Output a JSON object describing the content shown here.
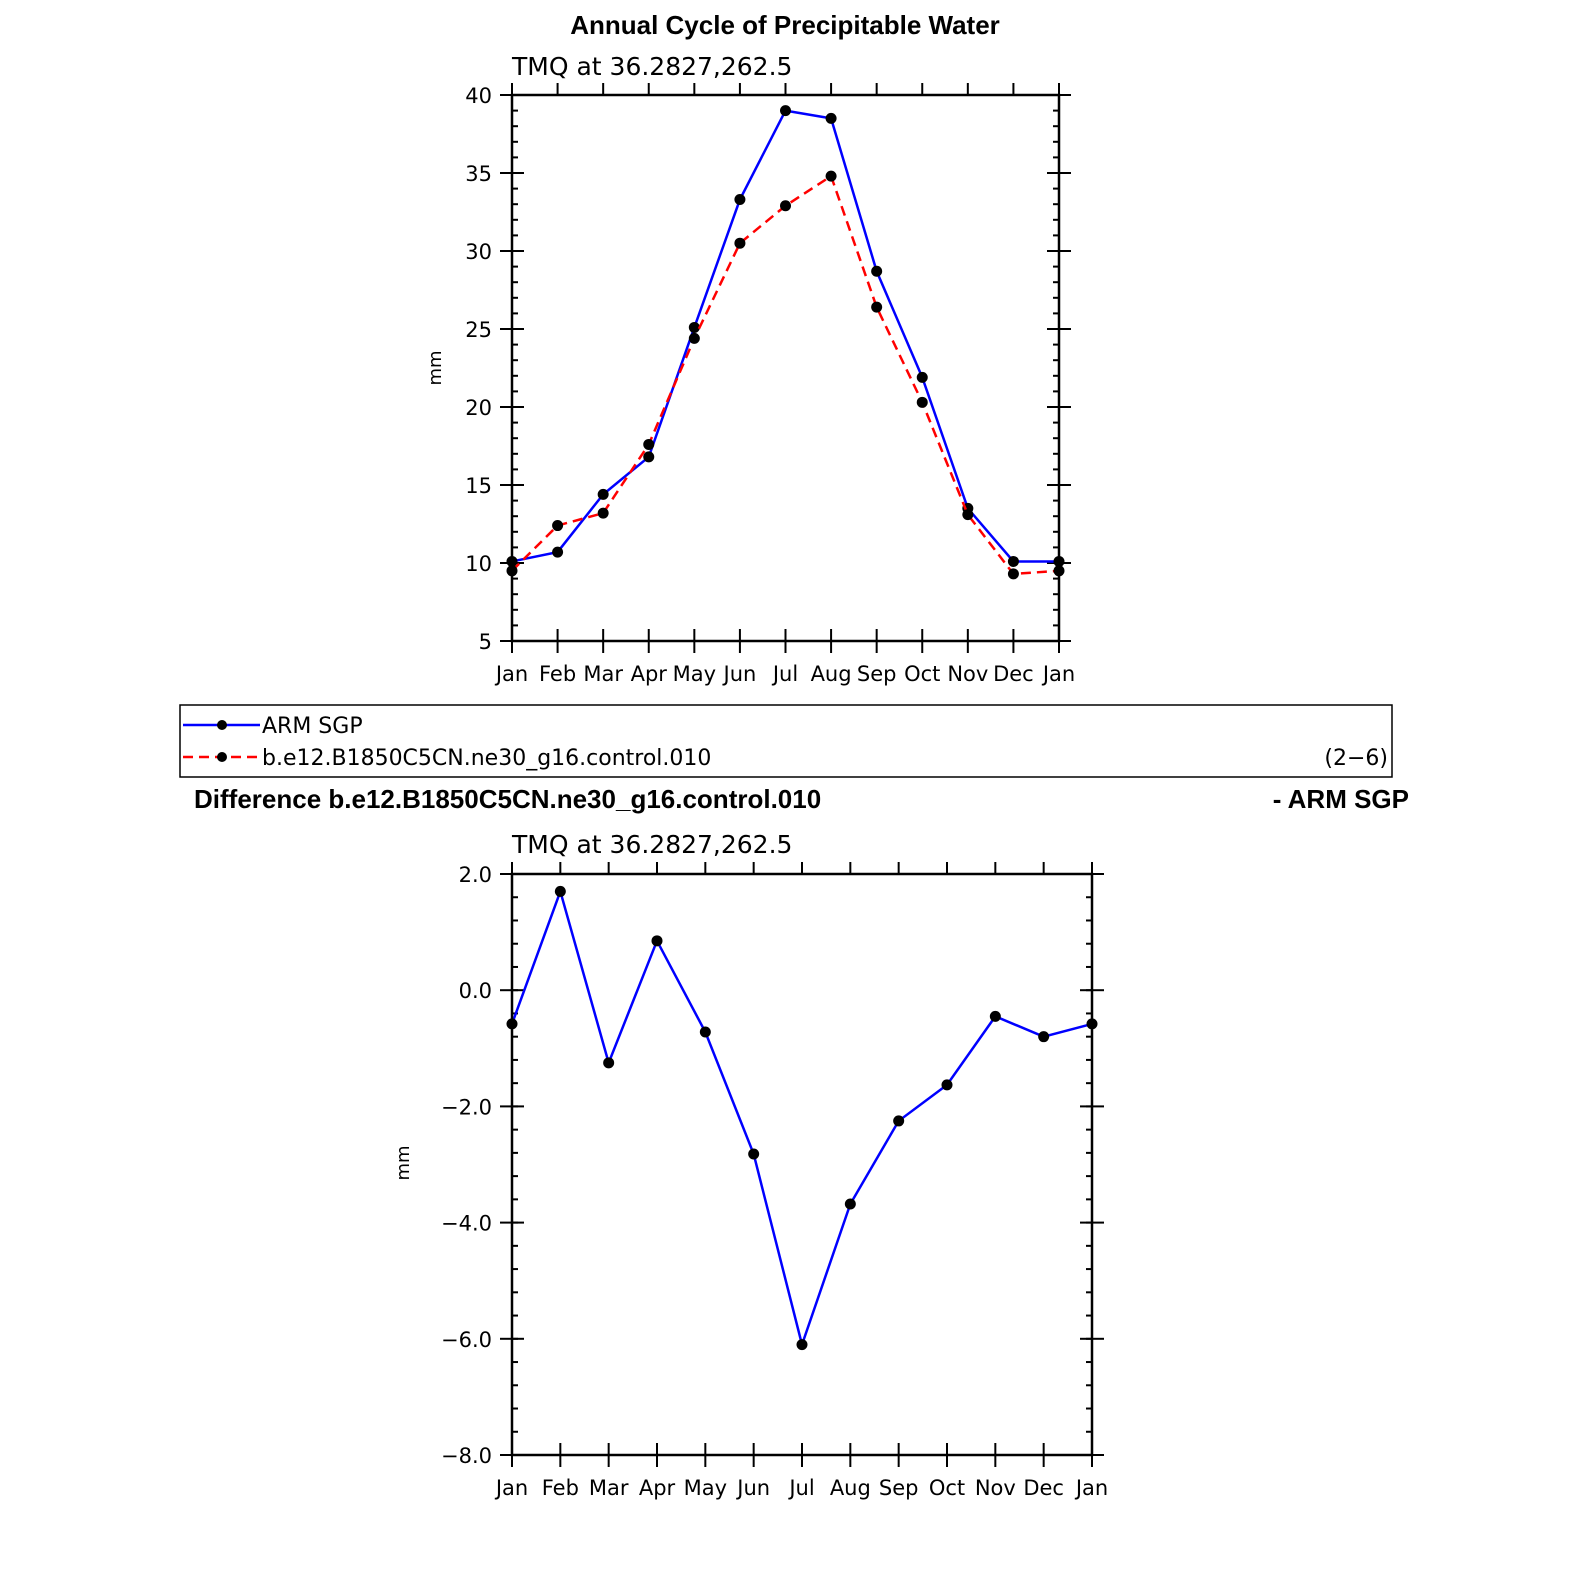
{
  "chart_data": [
    {
      "type": "line",
      "title": "Annual Cycle of Precipitable Water",
      "subtitle": "TMQ at 36.2827,262.5",
      "ylabel": "mm",
      "xlabel": "",
      "categories": [
        "Jan",
        "Feb",
        "Mar",
        "Apr",
        "May",
        "Jun",
        "Jul",
        "Aug",
        "Sep",
        "Oct",
        "Nov",
        "Dec",
        "Jan"
      ],
      "ylim": [
        5,
        40
      ],
      "yticks": [
        "5",
        "10",
        "15",
        "20",
        "25",
        "30",
        "35",
        "40"
      ],
      "ytick_values": [
        5,
        10,
        15,
        20,
        25,
        30,
        35,
        40
      ],
      "series": [
        {
          "name": "ARM SGP",
          "color": "#0000ff",
          "dash": "solid",
          "values": [
            10.1,
            10.7,
            14.4,
            16.8,
            25.1,
            33.3,
            39.0,
            38.5,
            28.7,
            21.9,
            13.5,
            10.1,
            10.1
          ]
        },
        {
          "name": "b.e12.B1850C5CN.ne30_g16.control.010",
          "color": "#ff0000",
          "dash": "dashed",
          "values": [
            9.5,
            12.4,
            13.2,
            17.6,
            24.4,
            30.5,
            32.9,
            34.8,
            26.4,
            20.3,
            13.1,
            9.3,
            9.5
          ]
        }
      ]
    },
    {
      "type": "line",
      "title": "Difference b.e12.B1850C5CN.ne30_g16.control.010",
      "title_right": "- ARM SGP",
      "subtitle": "TMQ at 36.2827,262.5",
      "ylabel": "mm",
      "xlabel": "",
      "categories": [
        "Jan",
        "Feb",
        "Mar",
        "Apr",
        "May",
        "Jun",
        "Jul",
        "Aug",
        "Sep",
        "Oct",
        "Nov",
        "Dec",
        "Jan"
      ],
      "ylim": [
        -8.0,
        2.0
      ],
      "yticks": [
        "2.0",
        "0.0",
        "−2.0",
        "−4.0",
        "−6.0",
        "−8.0"
      ],
      "ytick_values": [
        2,
        0,
        -2,
        -4,
        -6,
        -8
      ],
      "series": [
        {
          "color": "#0000ff",
          "dash": "solid",
          "values": [
            -0.58,
            1.7,
            -1.25,
            0.85,
            -0.72,
            -2.82,
            -6.1,
            -3.68,
            -2.25,
            -1.63,
            -0.45,
            -0.8,
            -0.58
          ]
        }
      ]
    }
  ],
  "legend": {
    "entries": [
      "ARM SGP",
      "b.e12.B1850C5CN.ne30_g16.control.010"
    ],
    "note": "(2−6)"
  }
}
